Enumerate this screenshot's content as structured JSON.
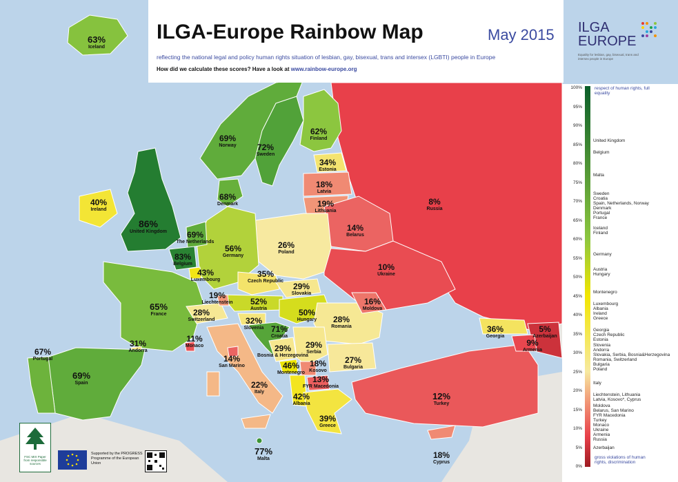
{
  "header": {
    "title": "ILGA-Europe Rainbow Map",
    "date": "May 2015",
    "subtitle": "reflecting the national legal and policy human rights situation of lesbian, gay, bisexual, trans and intersex (LGBTI) people in Europe",
    "howto_text": "How did we calculate these scores? Have a look at",
    "howto_link": "www.rainbow-europe.org"
  },
  "logo": {
    "line1": "ILGA",
    "line2": "EUROPE",
    "tagline": "Equality for lesbian, gay, bisexual, trans and intersex people in Europe"
  },
  "countries": [
    {
      "id": "iceland",
      "name": "Iceland",
      "pct": "63%"
    },
    {
      "id": "norway",
      "name": "Norway",
      "pct": "69%"
    },
    {
      "id": "sweden",
      "name": "Sweden",
      "pct": "72%"
    },
    {
      "id": "finland",
      "name": "Finland",
      "pct": "62%"
    },
    {
      "id": "estonia",
      "name": "Estonia",
      "pct": "34%"
    },
    {
      "id": "latvia",
      "name": "Latvia",
      "pct": "18%"
    },
    {
      "id": "lithuania",
      "name": "Lithuania",
      "pct": "19%"
    },
    {
      "id": "russia",
      "name": "Russia",
      "pct": "8%"
    },
    {
      "id": "belarus",
      "name": "Belarus",
      "pct": "14%"
    },
    {
      "id": "ireland",
      "name": "Ireland",
      "pct": "40%"
    },
    {
      "id": "uk",
      "name": "United Kingdom",
      "pct": "86%"
    },
    {
      "id": "denmark",
      "name": "Denmark",
      "pct": "68%"
    },
    {
      "id": "netherlands",
      "name": "The Netherlands",
      "pct": "69%"
    },
    {
      "id": "belgium",
      "name": "Belgium",
      "pct": "83%"
    },
    {
      "id": "luxembourg",
      "name": "Luxembourg",
      "pct": "43%"
    },
    {
      "id": "germany",
      "name": "Germany",
      "pct": "56%"
    },
    {
      "id": "poland",
      "name": "Poland",
      "pct": "26%"
    },
    {
      "id": "ukraine",
      "name": "Ukraine",
      "pct": "10%"
    },
    {
      "id": "czech",
      "name": "Czech Republic",
      "pct": "35%"
    },
    {
      "id": "slovakia",
      "name": "Slovakia",
      "pct": "29%"
    },
    {
      "id": "liechtenstein",
      "name": "Liechtenstein",
      "pct": "19%"
    },
    {
      "id": "austria",
      "name": "Austria",
      "pct": "52%"
    },
    {
      "id": "hungary",
      "name": "Hungary",
      "pct": "50%"
    },
    {
      "id": "moldova",
      "name": "Moldova",
      "pct": "16%"
    },
    {
      "id": "france",
      "name": "France",
      "pct": "65%"
    },
    {
      "id": "switzerland",
      "name": "Switzerland",
      "pct": "28%"
    },
    {
      "id": "slovenia",
      "name": "Slovenia",
      "pct": "32%"
    },
    {
      "id": "croatia",
      "name": "Croatia",
      "pct": "71%"
    },
    {
      "id": "romania",
      "name": "Romania",
      "pct": "28%"
    },
    {
      "id": "monaco",
      "name": "Monaco",
      "pct": "11%"
    },
    {
      "id": "andorra",
      "name": "Andorra",
      "pct": "31%"
    },
    {
      "id": "portugal",
      "name": "Portugal",
      "pct": "67%"
    },
    {
      "id": "spain",
      "name": "Spain",
      "pct": "69%"
    },
    {
      "id": "sanmarino",
      "name": "San Marino",
      "pct": "14%"
    },
    {
      "id": "bosnia",
      "name": "Bosnia & Herzegovina",
      "pct": "29%"
    },
    {
      "id": "serbia",
      "name": "Serbia",
      "pct": "29%"
    },
    {
      "id": "montenegro",
      "name": "Montenegro",
      "pct": "46%"
    },
    {
      "id": "kosovo",
      "name": "Kosovo",
      "pct": "18%"
    },
    {
      "id": "bulgaria",
      "name": "Bulgaria",
      "pct": "27%"
    },
    {
      "id": "italy",
      "name": "Italy",
      "pct": "22%"
    },
    {
      "id": "fyrmacedonia",
      "name": "FYR Macedonia",
      "pct": "13%"
    },
    {
      "id": "albania",
      "name": "Albania",
      "pct": "42%"
    },
    {
      "id": "greece",
      "name": "Greece",
      "pct": "39%"
    },
    {
      "id": "turkey",
      "name": "Turkey",
      "pct": "12%"
    },
    {
      "id": "georgia",
      "name": "Georgia",
      "pct": "36%"
    },
    {
      "id": "azerbaijan",
      "name": "Azerbaijan",
      "pct": "5%"
    },
    {
      "id": "armenia",
      "name": "Armenia",
      "pct": "9%"
    },
    {
      "id": "malta",
      "name": "Malta",
      "pct": "77%"
    },
    {
      "id": "cyprus",
      "name": "Cyprus",
      "pct": "18%"
    }
  ],
  "legend": {
    "top_note": "respect of human rights, full equality",
    "bottom_note": "gross violations of human rights, discrimination",
    "ticks": [
      "100%",
      "95%",
      "90%",
      "85%",
      "80%",
      "75%",
      "70%",
      "65%",
      "60%",
      "55%",
      "50%",
      "45%",
      "40%",
      "35%",
      "30%",
      "25%",
      "20%",
      "15%",
      "10%",
      "5%",
      "0%"
    ],
    "groups": [
      {
        "pct": 86,
        "lines": [
          "United Kingdom"
        ]
      },
      {
        "pct": 83,
        "lines": [
          "Belgium"
        ]
      },
      {
        "pct": 77,
        "lines": [
          "Malta"
        ]
      },
      {
        "pct": 72,
        "lines": [
          "Sweden",
          "Croatia",
          "Spain, Netherlands, Norway",
          "Denmark",
          "Portugal",
          "France"
        ]
      },
      {
        "pct": 63,
        "lines": [
          "Iceland",
          "Finland"
        ]
      },
      {
        "pct": 56,
        "lines": [
          "Germany"
        ]
      },
      {
        "pct": 52,
        "lines": [
          "Austria",
          "Hungary"
        ]
      },
      {
        "pct": 46,
        "lines": [
          "Montenegro"
        ]
      },
      {
        "pct": 43,
        "lines": [
          "Luxembourg",
          "Albania",
          "Ireland",
          "Greece"
        ]
      },
      {
        "pct": 36,
        "lines": [
          "Georgia",
          "Czech Republic",
          "Estonia"
        ]
      },
      {
        "pct": 32,
        "lines": [
          "Slovenia",
          "Andorra",
          "Slovakia, Serbia, Bosnia&Herzegovina",
          "Romania, Switzerland",
          "Bulgaria",
          "Poland"
        ]
      },
      {
        "pct": 22,
        "lines": [
          "Italy"
        ]
      },
      {
        "pct": 19,
        "lines": [
          "Liechtenstein, Lithuania",
          "Latvia, Kosovo*, Cyprus"
        ]
      },
      {
        "pct": 16,
        "lines": [
          "Moldova",
          "Belarus, San Marino",
          "FYR Macedonia",
          "Turkey",
          "Monaco",
          "Ukraine",
          "Armenia",
          "Russia"
        ]
      },
      {
        "pct": 5,
        "lines": [
          "Azerbaijan"
        ]
      }
    ]
  },
  "footer": {
    "fsc_text": "FSC MIX Paper from responsible sources",
    "eu_text": "Supported by the PROGRESS Programme of the European Union"
  },
  "colors": {
    "sea": "#bcd4ea",
    "nonmember_land": "#e8e6e1",
    "scale_top": "#0b5e2a",
    "scale_mid_green": "#8cc63f",
    "scale_yellow": "#f2e600",
    "scale_pale": "#f7e9a0",
    "scale_salmon": "#f2a07b",
    "scale_red": "#e8404a",
    "scale_bottom": "#9e1b22"
  }
}
